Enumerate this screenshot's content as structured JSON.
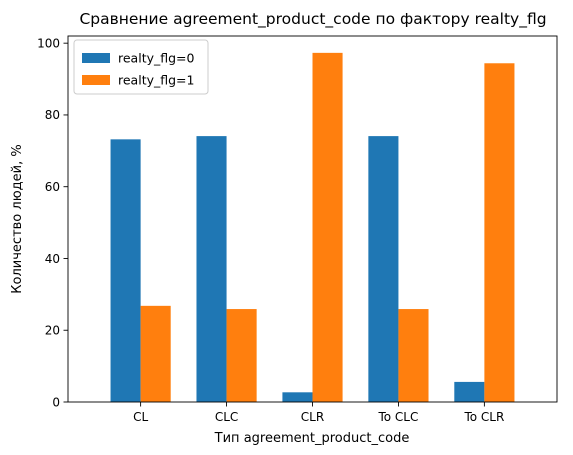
{
  "chart_data": {
    "type": "bar",
    "title": "Сравнение agreement_product_code по фактору realty_flg",
    "xlabel": "Тип agreement_product_code",
    "ylabel": "Количество людей, %",
    "categories": [
      "CL",
      "CLC",
      "CLR",
      "To CLC",
      "To CLR"
    ],
    "series": [
      {
        "name": "realty_flg=0",
        "color": "#1f77b4",
        "values": [
          73.2,
          74.1,
          2.7,
          74.1,
          5.6
        ]
      },
      {
        "name": "realty_flg=1",
        "color": "#ff7f0e",
        "values": [
          26.8,
          25.9,
          97.3,
          25.9,
          94.4
        ]
      }
    ],
    "ylim": [
      0,
      102
    ],
    "yticks": [
      0,
      20,
      40,
      60,
      80,
      100
    ],
    "grid": false,
    "legend_position": "top-left"
  }
}
